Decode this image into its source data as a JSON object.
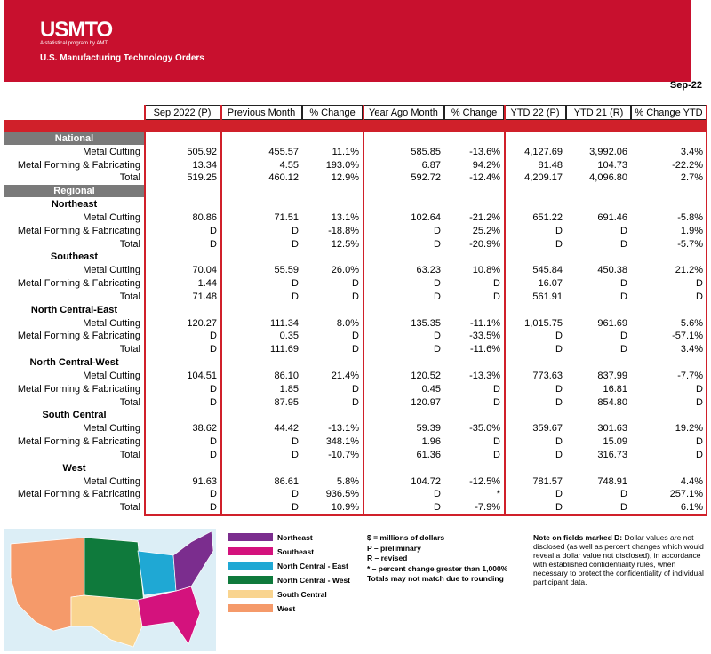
{
  "header": {
    "logo": "USMTO",
    "tagline": "A statistical program by AMT",
    "subtitle": "U.S. Manufacturing Technology Orders",
    "period": "Sep-22"
  },
  "table": {
    "columns": [
      "Sep 2022 (P)",
      "Previous Month",
      "% Change",
      "Year Ago Month",
      "% Change",
      "YTD 22 (P)",
      "YTD 21 (R)",
      "% Change YTD"
    ],
    "sections": [
      {
        "title": "National",
        "rows": [
          {
            "label": "Metal Cutting",
            "cells": [
              "505.92",
              "455.57",
              "11.1%",
              "585.85",
              "-13.6%",
              "4,127.69",
              "3,992.06",
              "3.4%"
            ]
          },
          {
            "label": "Metal Forming & Fabricating",
            "cells": [
              "13.34",
              "4.55",
              "193.0%",
              "6.87",
              "94.2%",
              "81.48",
              "104.73",
              "-22.2%"
            ]
          },
          {
            "label": "Total",
            "cells": [
              "519.25",
              "460.12",
              "12.9%",
              "592.72",
              "-12.4%",
              "4,209.17",
              "4,096.80",
              "2.7%"
            ]
          }
        ]
      },
      {
        "title": "Regional",
        "regions": [
          {
            "name": "Northeast",
            "rows": [
              {
                "label": "Metal Cutting",
                "cells": [
                  "80.86",
                  "71.51",
                  "13.1%",
                  "102.64",
                  "-21.2%",
                  "651.22",
                  "691.46",
                  "-5.8%"
                ]
              },
              {
                "label": "Metal Forming & Fabricating",
                "cells": [
                  "D",
                  "D",
                  "-18.8%",
                  "D",
                  "25.2%",
                  "D",
                  "D",
                  "1.9%"
                ]
              },
              {
                "label": "Total",
                "cells": [
                  "D",
                  "D",
                  "12.5%",
                  "D",
                  "-20.9%",
                  "D",
                  "D",
                  "-5.7%"
                ]
              }
            ]
          },
          {
            "name": "Southeast",
            "rows": [
              {
                "label": "Metal Cutting",
                "cells": [
                  "70.04",
                  "55.59",
                  "26.0%",
                  "63.23",
                  "10.8%",
                  "545.84",
                  "450.38",
                  "21.2%"
                ]
              },
              {
                "label": "Metal Forming & Fabricating",
                "cells": [
                  "1.44",
                  "D",
                  "D",
                  "D",
                  "D",
                  "16.07",
                  "D",
                  "D"
                ]
              },
              {
                "label": "Total",
                "cells": [
                  "71.48",
                  "D",
                  "D",
                  "D",
                  "D",
                  "561.91",
                  "D",
                  "D"
                ]
              }
            ]
          },
          {
            "name": "North Central-East",
            "rows": [
              {
                "label": "Metal Cutting",
                "cells": [
                  "120.27",
                  "111.34",
                  "8.0%",
                  "135.35",
                  "-11.1%",
                  "1,015.75",
                  "961.69",
                  "5.6%"
                ]
              },
              {
                "label": "Metal Forming & Fabricating",
                "cells": [
                  "D",
                  "0.35",
                  "D",
                  "D",
                  "-33.5%",
                  "D",
                  "D",
                  "-57.1%"
                ]
              },
              {
                "label": "Total",
                "cells": [
                  "D",
                  "111.69",
                  "D",
                  "D",
                  "-11.6%",
                  "D",
                  "D",
                  "3.4%"
                ]
              }
            ]
          },
          {
            "name": "North Central-West",
            "rows": [
              {
                "label": "Metal Cutting",
                "cells": [
                  "104.51",
                  "86.10",
                  "21.4%",
                  "120.52",
                  "-13.3%",
                  "773.63",
                  "837.99",
                  "-7.7%"
                ]
              },
              {
                "label": "Metal Forming & Fabricating",
                "cells": [
                  "D",
                  "1.85",
                  "D",
                  "0.45",
                  "D",
                  "D",
                  "16.81",
                  "D"
                ]
              },
              {
                "label": "Total",
                "cells": [
                  "D",
                  "87.95",
                  "D",
                  "120.97",
                  "D",
                  "D",
                  "854.80",
                  "D"
                ]
              }
            ]
          },
          {
            "name": "South Central",
            "rows": [
              {
                "label": "Metal Cutting",
                "cells": [
                  "38.62",
                  "44.42",
                  "-13.1%",
                  "59.39",
                  "-35.0%",
                  "359.67",
                  "301.63",
                  "19.2%"
                ]
              },
              {
                "label": "Metal Forming & Fabricating",
                "cells": [
                  "D",
                  "D",
                  "348.1%",
                  "1.96",
                  "D",
                  "D",
                  "15.09",
                  "D"
                ]
              },
              {
                "label": "Total",
                "cells": [
                  "D",
                  "D",
                  "-10.7%",
                  "61.36",
                  "D",
                  "D",
                  "316.73",
                  "D"
                ]
              }
            ]
          },
          {
            "name": "West",
            "rows": [
              {
                "label": "Metal Cutting",
                "cells": [
                  "91.63",
                  "86.61",
                  "5.8%",
                  "104.72",
                  "-12.5%",
                  "781.57",
                  "748.91",
                  "4.4%"
                ]
              },
              {
                "label": "Metal Forming & Fabricating",
                "cells": [
                  "D",
                  "D",
                  "936.5%",
                  "D",
                  "*",
                  "D",
                  "D",
                  "257.1%"
                ]
              },
              {
                "label": "Total",
                "cells": [
                  "D",
                  "D",
                  "10.9%",
                  "D",
                  "-7.9%",
                  "D",
                  "D",
                  "6.1%"
                ]
              }
            ]
          }
        ]
      }
    ]
  },
  "legend": [
    {
      "name": "Northeast",
      "color": "#7b2d8e"
    },
    {
      "name": "Southeast",
      "color": "#d4127d"
    },
    {
      "name": "North Central - East",
      "color": "#1fa8d4"
    },
    {
      "name": "North Central - West",
      "color": "#0f7a3c"
    },
    {
      "name": "South Central",
      "color": "#f9d48f"
    },
    {
      "name": "West",
      "color": "#f59a6a"
    }
  ],
  "notes": [
    "$ = millions of dollars",
    "P – preliminary",
    "R – revised",
    "* – percent change greater than 1,000%",
    "Totals may not match due to rounding"
  ],
  "disclosure": {
    "lead": "Note on fields marked D:",
    "text": "Dollar values are not disclosed (as well as percent changes which would reveal a dollar value not disclosed), in accordance with established confidentiality rules, when necessary to protect the confidentiality of individual participant data."
  }
}
